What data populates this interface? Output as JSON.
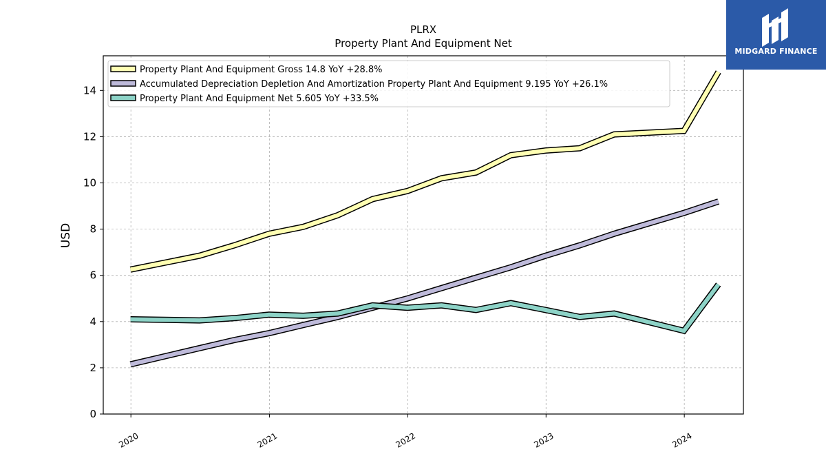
{
  "chart_data": {
    "type": "line",
    "title": "PLRX",
    "subtitle": "Property Plant And Equipment Net",
    "xlabel": "",
    "ylabel": "USD",
    "x_ticks": [
      "2020",
      "2021",
      "2022",
      "2023",
      "2024"
    ],
    "y_ticks": [
      "0",
      "2",
      "4",
      "6",
      "8",
      "10",
      "12",
      "14"
    ],
    "ylim": [
      0,
      15.5
    ],
    "xlim": [
      "2019-10-20",
      "2024-06-05"
    ],
    "grid": true,
    "legend_position": "top-left",
    "x": [
      "2019-12-31",
      "2020-06-30",
      "2020-09-30",
      "2020-12-31",
      "2021-03-31",
      "2021-06-30",
      "2021-09-30",
      "2021-12-31",
      "2022-03-31",
      "2022-06-30",
      "2022-09-30",
      "2022-12-31",
      "2023-03-31",
      "2023-06-30",
      "2023-12-31",
      "2024-03-31"
    ],
    "series": [
      {
        "name": "Property Plant And Equipment Gross",
        "legend_label": "Property Plant And Equipment Gross  14.8 YoY +28.8%",
        "color": "#ffffb3",
        "values": [
          6.25,
          6.85,
          7.3,
          7.8,
          8.1,
          8.6,
          9.3,
          9.65,
          10.2,
          10.45,
          11.2,
          11.4,
          11.5,
          12.1,
          12.25,
          14.8
        ]
      },
      {
        "name": "Accumulated Depreciation Depletion And Amortization Property Plant And Equipment",
        "legend_label": "Accumulated Depreciation Depletion And Amortization Property Plant And Equipment  9.195 YoY +26.1%",
        "color": "#bebada",
        "values": [
          2.15,
          2.85,
          3.2,
          3.5,
          3.85,
          4.2,
          4.6,
          5.0,
          5.45,
          5.9,
          6.35,
          6.85,
          7.3,
          7.8,
          8.7,
          9.195
        ]
      },
      {
        "name": "Property Plant And Equipment Net",
        "legend_label": "Property Plant And Equipment Net  5.605 YoY +33.5%",
        "color": "#8dd3c7",
        "values": [
          4.1,
          4.05,
          4.15,
          4.3,
          4.25,
          4.35,
          4.7,
          4.6,
          4.7,
          4.5,
          4.8,
          4.5,
          4.2,
          4.35,
          3.6,
          5.605
        ]
      }
    ]
  },
  "logo": {
    "text": "MIDGARD FINANCE",
    "background": "#2b5aa8"
  }
}
